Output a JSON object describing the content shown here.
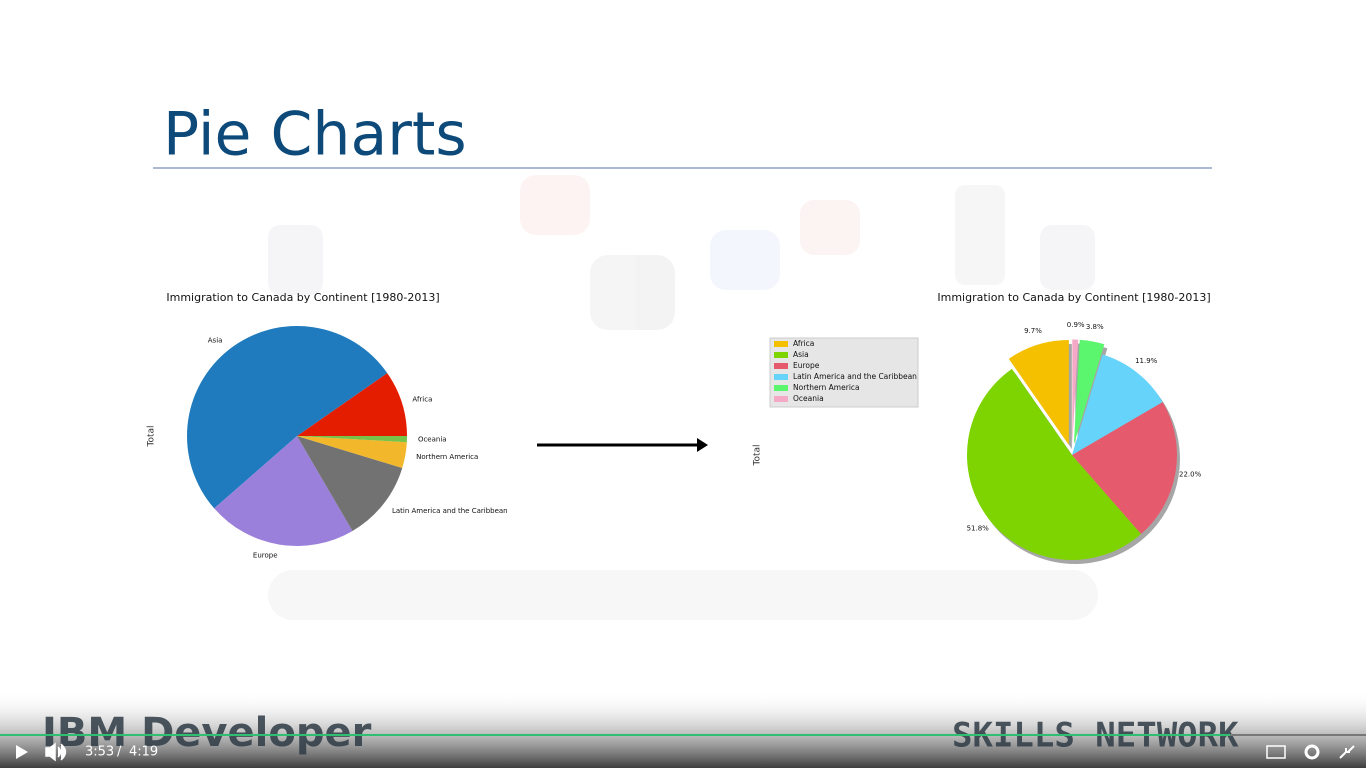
{
  "slide": {
    "title": "Pie Charts"
  },
  "chart_data": [
    {
      "type": "pie",
      "title": "Immigration to Canada by Continent [1980-2013]",
      "ylabel": "Total",
      "categories": [
        "Africa",
        "Asia",
        "Europe",
        "Latin America and the Caribbean",
        "Northern America",
        "Oceania"
      ],
      "values": [
        9.7,
        51.8,
        22.0,
        11.9,
        3.8,
        0.9
      ],
      "colors": [
        "#e41d00",
        "#1f7bbd",
        "#9a7fdb",
        "#727272",
        "#f2b72b",
        "#76c44a"
      ],
      "startangle": 0,
      "labels": "categories",
      "shadow": false
    },
    {
      "type": "pie",
      "title": "Immigration to Canada by Continent [1980-2013]",
      "ylabel": "Total",
      "categories": [
        "Africa",
        "Asia",
        "Europe",
        "Latin America and the Caribbean",
        "Northern America",
        "Oceania"
      ],
      "values": [
        9.7,
        51.8,
        22.0,
        11.9,
        3.8,
        0.9
      ],
      "value_labels": [
        "9.7%",
        "51.8%",
        "22.0%",
        "11.9%",
        "3.8%",
        "0.9%"
      ],
      "colors": [
        "#f5c000",
        "#7ed400",
        "#e65a6e",
        "#66d3fa",
        "#5cf56e",
        "#f6a9c6"
      ],
      "explode": [
        0.1,
        0,
        0,
        0,
        0.1,
        0.1
      ],
      "startangle": 90,
      "labels": "percent",
      "shadow": true,
      "legend": "upper left"
    }
  ],
  "branding": {
    "left": "IBM Developer",
    "right": "SKILLS NETWORK"
  },
  "player": {
    "current_time": "3:53",
    "separator": "/",
    "duration": "4:19"
  }
}
